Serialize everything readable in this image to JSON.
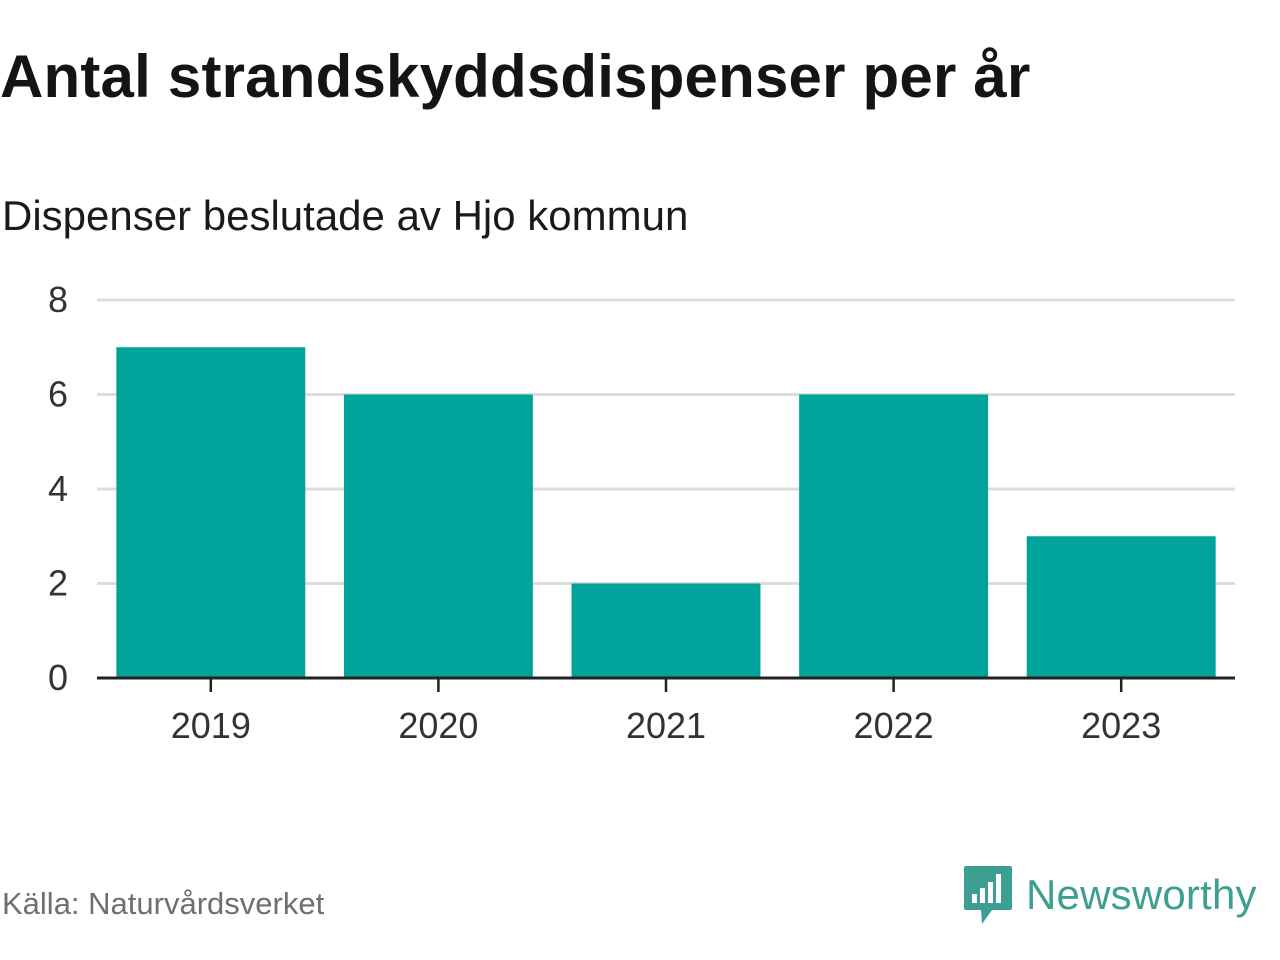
{
  "header": {
    "title": "Antal strandskyddsdispenser per år",
    "subtitle": "Dispenser beslutade av Hjo kommun"
  },
  "footer": {
    "source": "Källa: Naturvårdsverket",
    "brand": "Newsworthy"
  },
  "colors": {
    "bar": "#00a39a",
    "grid": "#dcdcdc",
    "axis": "#222222",
    "brand": "#3d9f92"
  },
  "chart_data": {
    "type": "bar",
    "title": "Antal strandskyddsdispenser per år",
    "subtitle": "Dispenser beslutade av Hjo kommun",
    "categories": [
      "2019",
      "2020",
      "2021",
      "2022",
      "2023"
    ],
    "values": [
      7,
      6,
      2,
      6,
      3
    ],
    "xlabel": "",
    "ylabel": "",
    "ylim": [
      0,
      8
    ],
    "yticks": [
      0,
      2,
      4,
      6,
      8
    ],
    "grid": true,
    "legend": "none"
  }
}
